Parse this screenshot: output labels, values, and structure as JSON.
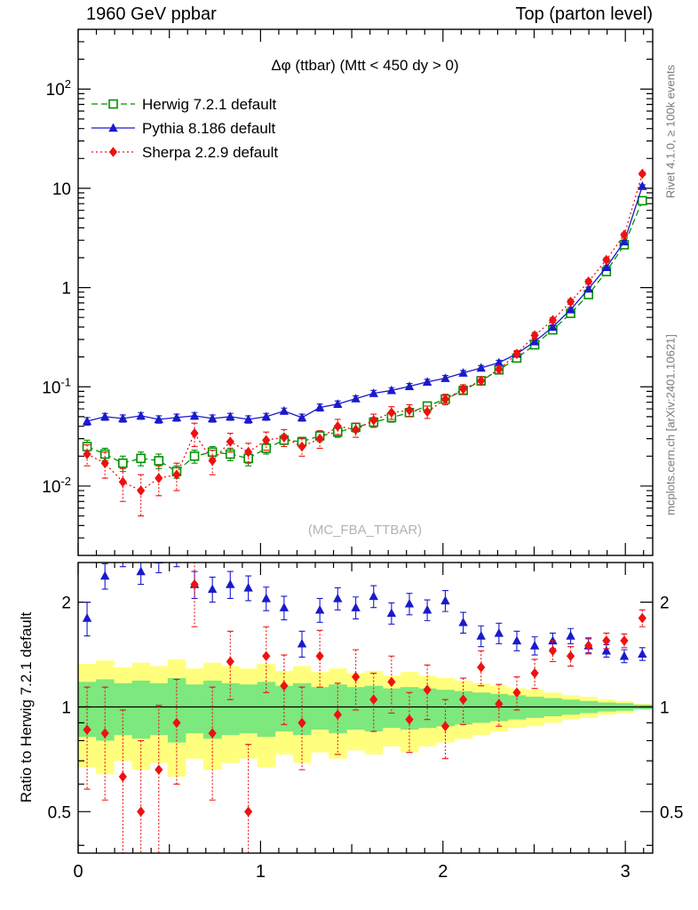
{
  "header": {
    "left": "1960 GeV ppbar",
    "right": "Top (parton level)"
  },
  "side_labels": {
    "right_top": "Rivet 4.1.0, ≥ 100k events",
    "right_bottom": "mcplots.cern.ch [arXiv:2401.10621]"
  },
  "chart_data": {
    "type": "line",
    "title": "Δφ (ttbar) (Mtt < 450 dy > 0)",
    "watermark": "(MC_FBA_TTBAR)",
    "xlim": [
      0,
      3.15
    ],
    "x_ticks": [
      0,
      1,
      2,
      3
    ],
    "bin_width": 0.0982,
    "x": [
      0.049,
      0.147,
      0.245,
      0.344,
      0.442,
      0.54,
      0.638,
      0.736,
      0.834,
      0.933,
      1.031,
      1.129,
      1.227,
      1.325,
      1.423,
      1.522,
      1.62,
      1.718,
      1.816,
      1.914,
      2.013,
      2.111,
      2.209,
      2.307,
      2.405,
      2.503,
      2.602,
      2.7,
      2.798,
      2.896,
      2.994,
      3.093
    ],
    "main": {
      "yscale": "log",
      "ylim": [
        0.002,
        400
      ],
      "y_decade_labels": [
        2,
        1,
        0,
        -1,
        -2
      ],
      "series": [
        {
          "name": "Herwig 7.2.1 default",
          "color": "#009100",
          "marker": "open-square",
          "line": "dashed",
          "values": [
            0.025,
            0.021,
            0.017,
            0.019,
            0.018,
            0.014,
            0.02,
            0.022,
            0.021,
            0.019,
            0.024,
            0.029,
            0.028,
            0.032,
            0.035,
            0.039,
            0.044,
            0.049,
            0.055,
            0.064,
            0.075,
            0.092,
            0.115,
            0.148,
            0.195,
            0.265,
            0.375,
            0.55,
            0.85,
            1.45,
            2.7,
            7.5
          ],
          "errors": [
            0.004,
            0.003,
            0.003,
            0.003,
            0.003,
            0.002,
            0.003,
            0.003,
            0.003,
            0.003,
            0.003,
            0.004,
            0.003,
            0.004,
            0.004,
            0.004,
            0.005,
            0.005,
            0.005,
            0.006,
            0.007,
            0.008,
            0.01,
            0.012,
            0.015,
            0.02,
            0.025,
            0.035,
            0.05,
            0.08,
            0.12,
            0.3
          ]
        },
        {
          "name": "Pythia 8.186 default",
          "color": "#1a1acc",
          "marker": "triangle",
          "line": "solid",
          "values": [
            0.045,
            0.05,
            0.048,
            0.051,
            0.047,
            0.049,
            0.051,
            0.048,
            0.05,
            0.047,
            0.05,
            0.057,
            0.049,
            0.062,
            0.067,
            0.076,
            0.086,
            0.092,
            0.101,
            0.112,
            0.122,
            0.138,
            0.155,
            0.175,
            0.215,
            0.285,
            0.4,
            0.6,
            0.97,
            1.6,
            2.9,
            10.5
          ],
          "errors": [
            0.004,
            0.004,
            0.004,
            0.004,
            0.004,
            0.004,
            0.004,
            0.004,
            0.004,
            0.004,
            0.004,
            0.004,
            0.004,
            0.005,
            0.005,
            0.005,
            0.006,
            0.006,
            0.007,
            0.007,
            0.008,
            0.008,
            0.009,
            0.01,
            0.012,
            0.015,
            0.02,
            0.03,
            0.04,
            0.06,
            0.1,
            0.35
          ]
        },
        {
          "name": "Sherpa 2.2.9 default",
          "color": "#ee1111",
          "marker": "diamond",
          "line": "dotted",
          "values": [
            0.021,
            0.017,
            0.011,
            0.009,
            0.012,
            0.013,
            0.034,
            0.018,
            0.028,
            0.022,
            0.029,
            0.031,
            0.025,
            0.03,
            0.04,
            0.037,
            0.046,
            0.055,
            0.058,
            0.056,
            0.075,
            0.095,
            0.115,
            0.15,
            0.215,
            0.33,
            0.47,
            0.72,
            1.15,
            1.9,
            3.4,
            14.0
          ],
          "errors": [
            0.005,
            0.005,
            0.004,
            0.004,
            0.004,
            0.004,
            0.009,
            0.005,
            0.006,
            0.005,
            0.006,
            0.006,
            0.005,
            0.006,
            0.007,
            0.006,
            0.007,
            0.008,
            0.008,
            0.008,
            0.009,
            0.01,
            0.011,
            0.013,
            0.017,
            0.022,
            0.028,
            0.04,
            0.055,
            0.09,
            0.14,
            0.5
          ]
        }
      ]
    },
    "ratio": {
      "ylabel": "Ratio to Herwig 7.2.1 default",
      "yscale": "log",
      "ylim": [
        0.38,
        2.6
      ],
      "y_ticks": [
        0.5,
        1,
        2
      ],
      "y_minor_ticks": [
        0.4,
        0.6,
        0.7,
        0.8,
        0.9
      ],
      "reference": 1,
      "bands": {
        "yellow": {
          "color": "#ffff7d",
          "halfwidths": [
            0.33,
            0.36,
            0.3,
            0.34,
            0.31,
            0.37,
            0.29,
            0.34,
            0.31,
            0.29,
            0.33,
            0.27,
            0.31,
            0.26,
            0.29,
            0.25,
            0.27,
            0.23,
            0.26,
            0.23,
            0.21,
            0.19,
            0.17,
            0.15,
            0.13,
            0.12,
            0.1,
            0.08,
            0.07,
            0.05,
            0.04,
            0.02
          ]
        },
        "green": {
          "color": "#7de87d",
          "halfwidths": [
            0.18,
            0.2,
            0.17,
            0.19,
            0.17,
            0.21,
            0.16,
            0.19,
            0.17,
            0.16,
            0.18,
            0.15,
            0.17,
            0.14,
            0.16,
            0.14,
            0.15,
            0.13,
            0.14,
            0.13,
            0.12,
            0.11,
            0.1,
            0.09,
            0.08,
            0.07,
            0.06,
            0.05,
            0.04,
            0.03,
            0.025,
            0.015
          ]
        }
      },
      "series": [
        {
          "name": "Pythia 8.186 default",
          "color": "#1a1acc",
          "marker": "triangle",
          "line": "solid",
          "values": [
            1.8,
            2.38,
            2.75,
            2.45,
            2.65,
            2.75,
            2.25,
            2.18,
            2.25,
            2.2,
            2.05,
            1.93,
            1.52,
            1.9,
            2.05,
            1.93,
            2.08,
            1.86,
            1.98,
            1.9,
            2.02,
            1.75,
            1.6,
            1.63,
            1.55,
            1.5,
            1.55,
            1.6,
            1.5,
            1.45,
            1.4,
            1.42
          ],
          "errors": [
            0.2,
            0.2,
            0.22,
            0.2,
            0.22,
            0.22,
            0.2,
            0.18,
            0.2,
            0.18,
            0.16,
            0.15,
            0.13,
            0.15,
            0.15,
            0.14,
            0.15,
            0.13,
            0.14,
            0.13,
            0.14,
            0.12,
            0.11,
            0.11,
            0.1,
            0.09,
            0.08,
            0.08,
            0.07,
            0.06,
            0.06,
            0.06
          ]
        },
        {
          "name": "Sherpa 2.2.9 default",
          "color": "#ee1111",
          "marker": "diamond",
          "line": "dotted",
          "values": [
            0.86,
            0.84,
            0.63,
            0.5,
            0.66,
            0.9,
            2.25,
            0.84,
            1.35,
            0.5,
            1.4,
            1.15,
            0.9,
            1.4,
            0.95,
            1.22,
            1.05,
            1.18,
            0.92,
            1.12,
            0.88,
            1.05,
            1.3,
            1.02,
            1.1,
            1.25,
            1.45,
            1.4,
            1.5,
            1.55,
            1.55,
            1.8
          ],
          "errors": [
            0.28,
            0.3,
            0.35,
            0.3,
            0.35,
            0.3,
            0.55,
            0.3,
            0.3,
            0.28,
            0.3,
            0.26,
            0.24,
            0.26,
            0.22,
            0.24,
            0.2,
            0.22,
            0.18,
            0.2,
            0.17,
            0.16,
            0.15,
            0.14,
            0.12,
            0.12,
            0.1,
            0.09,
            0.08,
            0.08,
            0.07,
            0.1
          ]
        }
      ]
    }
  }
}
